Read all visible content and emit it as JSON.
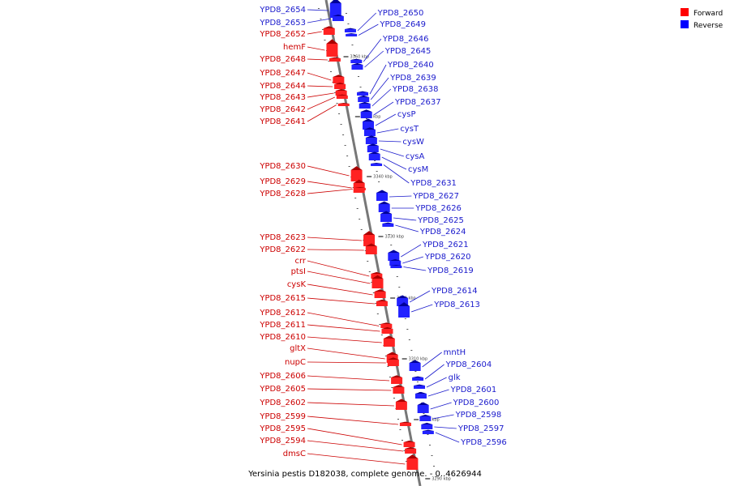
{
  "title": "Yersinia pestis D182038, complete genome. - 0..4626944",
  "legend": [
    {
      "label": "Forward",
      "color": "#ff0000"
    },
    {
      "label": "Reverse",
      "color": "#0000ff"
    }
  ],
  "ticks": [
    "3360 kbp",
    "3350 kbp",
    "3340 kbp",
    "3330 kbp",
    "3320 kbp",
    "3310 kbp",
    "3300 kbp",
    "3290 kbp"
  ],
  "forward_labels": [
    "YPD8_2652",
    "hemF",
    "YPD8_2648",
    "YPD8_2647",
    "YPD8_2644",
    "YPD8_2643",
    "YPD8_2642",
    "YPD8_2641",
    "YPD8_2630",
    "YPD8_2629",
    "YPD8_2628",
    "YPD8_2623",
    "YPD8_2622",
    "crr",
    "ptsI",
    "cysK",
    "YPD8_2615",
    "YPD8_2612",
    "YPD8_2611",
    "YPD8_2610",
    "gltX",
    "nupC",
    "YPD8_2606",
    "YPD8_2605",
    "YPD8_2602",
    "YPD8_2599",
    "YPD8_2595",
    "YPD8_2594",
    "dmsC"
  ],
  "reverse_labels_left": [
    "YPD8_2654",
    "YPD8_2653"
  ],
  "reverse_labels": [
    "YPD8_2650",
    "YPD8_2649",
    "YPD8_2646",
    "YPD8_2645",
    "YPD8_2640",
    "YPD8_2639",
    "YPD8_2638",
    "YPD8_2637",
    "cysP",
    "cysT",
    "cysW",
    "cysA",
    "cysM",
    "YPD8_2631",
    "YPD8_2627",
    "YPD8_2626",
    "YPD8_2625",
    "YPD8_2624",
    "YPD8_2621",
    "YPD8_2620",
    "YPD8_2619",
    "YPD8_2614",
    "YPD8_2613",
    "mntH",
    "YPD8_2604",
    "glk",
    "YPD8_2601",
    "YPD8_2600",
    "YPD8_2598",
    "YPD8_2597",
    "YPD8_2596"
  ]
}
